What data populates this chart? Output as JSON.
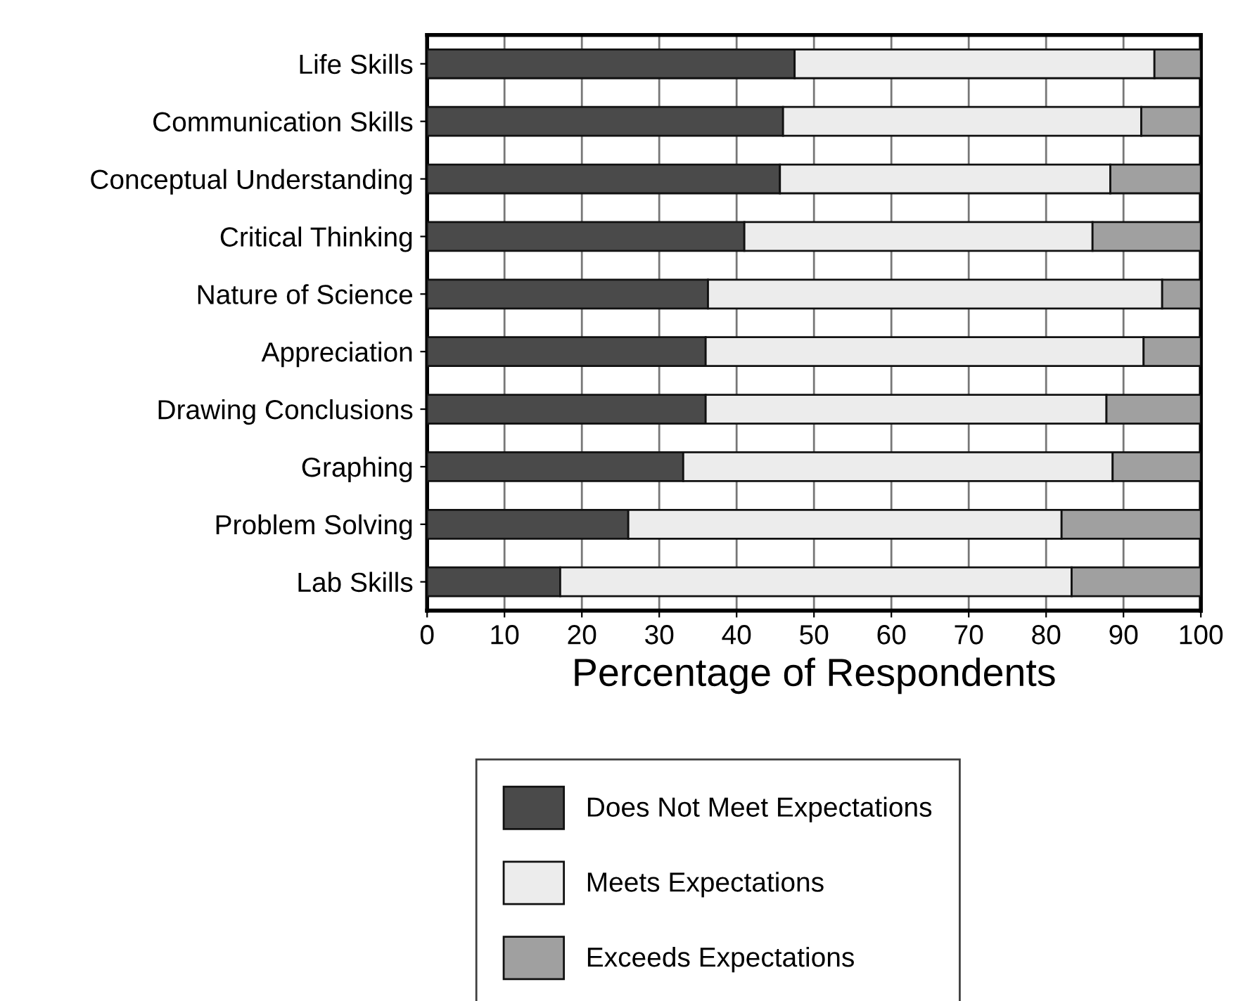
{
  "chart_data": {
    "type": "bar",
    "orientation": "horizontal",
    "stacked": true,
    "xlabel": "Percentage of Respondents",
    "categories": [
      "Life Skills",
      "Communication Skills",
      "Conceptual Understanding",
      "Critical Thinking",
      "Nature of Science",
      "Appreciation",
      "Drawing Conclusions",
      "Graphing",
      "Problem Solving",
      "Lab Skills"
    ],
    "series": [
      {
        "name": "Does Not Meet Expectations",
        "color": "#4a4a4a",
        "values": [
          47.5,
          46,
          45.6,
          41,
          36.3,
          36,
          36,
          33.1,
          26,
          17.2
        ]
      },
      {
        "name": "Meets Expectations",
        "color": "#ececec",
        "values": [
          46.5,
          46.3,
          42.7,
          45,
          58.7,
          56.6,
          51.8,
          55.5,
          56,
          66.1
        ]
      },
      {
        "name": "Exceeds Expectations",
        "color": "#a0a0a0",
        "values": [
          6,
          7.7,
          11.7,
          14,
          5,
          7.4,
          12.2,
          11.4,
          18,
          16.7
        ]
      }
    ],
    "xlim": [
      0,
      100
    ],
    "xticks": [
      0,
      10,
      20,
      30,
      40,
      50,
      60,
      70,
      80,
      90,
      100
    ],
    "grid": "x",
    "legend": "bottom"
  }
}
